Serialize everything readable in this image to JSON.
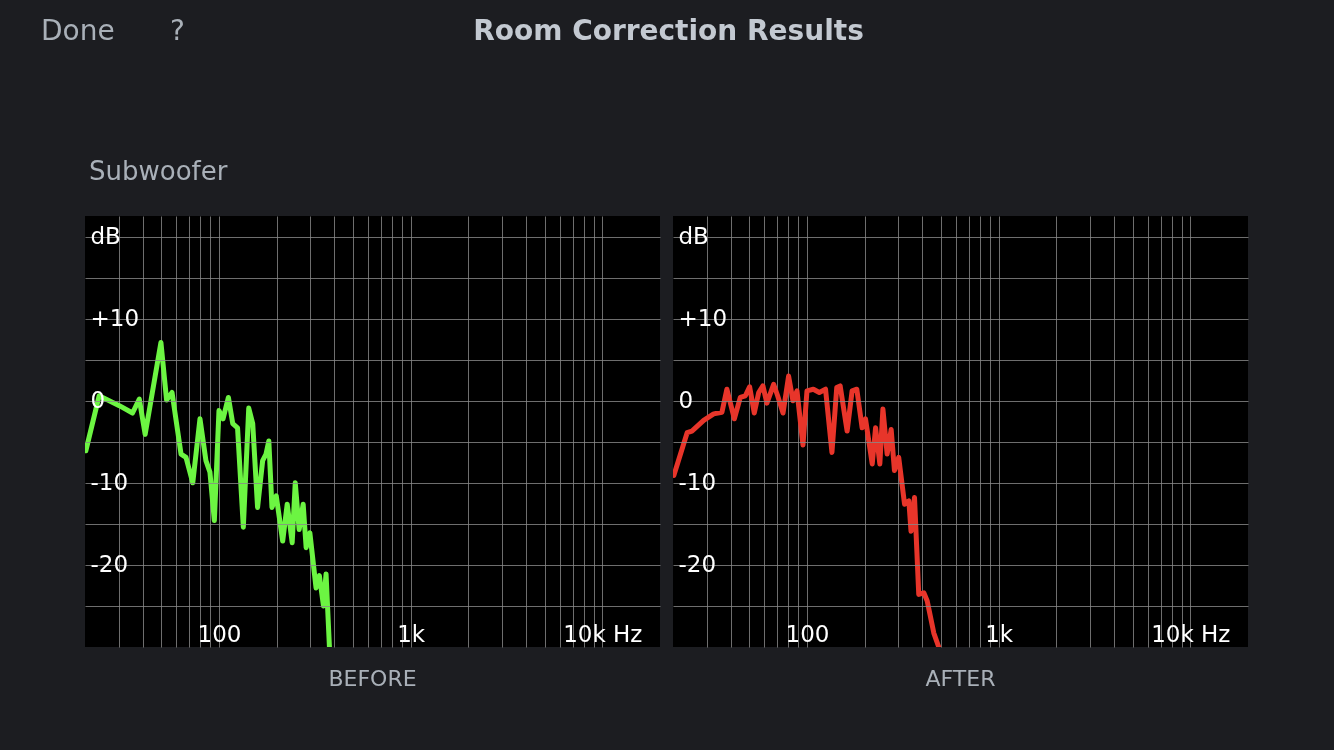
{
  "chart_data": [
    {
      "type": "other",
      "title": "Room Correction Results",
      "subtitle": "Subwoofer",
      "annotations": [
        "Done",
        "?"
      ]
    },
    {
      "type": "line",
      "title": "BEFORE",
      "xlim": [
        20,
        20000
      ],
      "ylim": [
        -30,
        22.5
      ],
      "log": "x",
      "grid": true,
      "xticks": [
        {
          "value": 30,
          "label": null
        },
        {
          "value": 40,
          "label": null
        },
        {
          "value": 50,
          "label": null
        },
        {
          "value": 60,
          "label": null
        },
        {
          "value": 70,
          "label": null
        },
        {
          "value": 80,
          "label": null
        },
        {
          "value": 90,
          "label": null
        },
        100,
        {
          "value": 200,
          "label": null
        },
        {
          "value": 300,
          "label": null
        },
        {
          "value": 400,
          "label": null
        },
        {
          "value": 500,
          "label": null
        },
        {
          "value": 600,
          "label": null
        },
        {
          "value": 700,
          "label": null
        },
        {
          "value": 800,
          "label": null
        },
        {
          "value": 900,
          "label": null
        },
        {
          "value": 1000,
          "label": "1k"
        },
        {
          "value": 2000,
          "label": null
        },
        {
          "value": 3000,
          "label": null
        },
        {
          "value": 4000,
          "label": null
        },
        {
          "value": 5000,
          "label": null
        },
        {
          "value": 6000,
          "label": null
        },
        {
          "value": 7000,
          "label": null
        },
        {
          "value": 8000,
          "label": null
        },
        {
          "value": 9000,
          "label": null
        },
        {
          "value": 10000,
          "label": "10k Hz"
        }
      ],
      "yticks": [
        {
          "value": -25,
          "label": null
        },
        -20,
        {
          "value": -15,
          "label": null
        },
        -10,
        {
          "value": -5,
          "label": null
        },
        0,
        {
          "value": 5,
          "label": null
        },
        {
          "value": 10,
          "label": "+10"
        },
        {
          "value": 15,
          "label": null
        },
        {
          "value": 20,
          "label": "dB"
        }
      ],
      "series": [
        {
          "color": "#6cf542",
          "x": [
            20.2,
            23.7,
            30.2,
            35.4,
            38.4,
            41.2,
            49.8,
            53.3,
            56.9,
            63.4,
            67.3,
            73,
            79.6,
            85.5,
            89.7,
            94.6,
            100,
            105,
            112,
            118,
            125,
            134,
            143,
            150,
            159,
            169,
            176,
            182,
            189,
            199,
            215,
            227,
            241,
            250,
            262,
            275,
            285,
            298,
            321,
            334,
            351,
            362,
            377
          ],
          "values": [
            -6.1,
            0.6,
            -0.6,
            -1.5,
            0.2,
            -4.1,
            7.1,
            0.1,
            1.0,
            -6.5,
            -6.9,
            -10.0,
            -2.2,
            -7.3,
            -8.7,
            -14.6,
            -1.2,
            -2.2,
            0.4,
            -2.8,
            -3.3,
            -15.4,
            -0.9,
            -2.8,
            -13.0,
            -7.3,
            -6.5,
            -4.9,
            -13.0,
            -11.6,
            -17.1,
            -12.6,
            -17.3,
            -10.0,
            -15.7,
            -12.6,
            -17.9,
            -16.1,
            -22.8,
            -21.3,
            -25.0,
            -21.1,
            -30
          ]
        }
      ]
    },
    {
      "type": "line",
      "title": "AFTER",
      "xlim": [
        20,
        20000
      ],
      "ylim": [
        -30,
        22.5
      ],
      "log": "x",
      "grid": true,
      "xticks": [
        {
          "value": 30,
          "label": null
        },
        {
          "value": 40,
          "label": null
        },
        {
          "value": 50,
          "label": null
        },
        {
          "value": 60,
          "label": null
        },
        {
          "value": 70,
          "label": null
        },
        {
          "value": 80,
          "label": null
        },
        {
          "value": 90,
          "label": null
        },
        100,
        {
          "value": 200,
          "label": null
        },
        {
          "value": 300,
          "label": null
        },
        {
          "value": 400,
          "label": null
        },
        {
          "value": 500,
          "label": null
        },
        {
          "value": 600,
          "label": null
        },
        {
          "value": 700,
          "label": null
        },
        {
          "value": 800,
          "label": null
        },
        {
          "value": 900,
          "label": null
        },
        {
          "value": 1000,
          "label": "1k"
        },
        {
          "value": 2000,
          "label": null
        },
        {
          "value": 3000,
          "label": null
        },
        {
          "value": 4000,
          "label": null
        },
        {
          "value": 5000,
          "label": null
        },
        {
          "value": 6000,
          "label": null
        },
        {
          "value": 7000,
          "label": null
        },
        {
          "value": 8000,
          "label": null
        },
        {
          "value": 9000,
          "label": null
        },
        {
          "value": 10000,
          "label": "10k Hz"
        }
      ],
      "yticks": [
        {
          "value": -25,
          "label": null
        },
        -20,
        {
          "value": -15,
          "label": null
        },
        -10,
        {
          "value": -5,
          "label": null
        },
        0,
        {
          "value": 5,
          "label": null
        },
        {
          "value": 10,
          "label": "+10"
        },
        {
          "value": 15,
          "label": null
        },
        {
          "value": 20,
          "label": "dB"
        }
      ],
      "series": [
        {
          "color": "#e8352a",
          "x": [
            20.2,
            23.7,
            25.1,
            28.9,
            32.6,
            36,
            38.2,
            41.8,
            44.9,
            47.7,
            50.2,
            53.1,
            56,
            58.9,
            61.8,
            67,
            70.3,
            75,
            80.2,
            84.5,
            88.7,
            95.3,
            100,
            108,
            116,
            125,
            135,
            143,
            149,
            162,
            172,
            182,
            194,
            202,
            219,
            228,
            240,
            249,
            262,
            275,
            286,
            301,
            323,
            340,
            349,
            364,
            383,
            407,
            424,
            459,
            487
          ],
          "values": [
            -9.1,
            -3.9,
            -3.7,
            -2.4,
            -1.6,
            -1.4,
            1.4,
            -2.2,
            0.4,
            0.6,
            1.7,
            -1.5,
            1.0,
            1.8,
            -0.3,
            2.0,
            0.6,
            -1.5,
            3.0,
            0,
            1.2,
            -5.4,
            1.2,
            1.4,
            1.0,
            1.4,
            -6.3,
            1.6,
            1.8,
            -3.7,
            1.2,
            1.4,
            -3.3,
            -2.2,
            -7.7,
            -3.3,
            -7.7,
            -1.0,
            -6.5,
            -3.5,
            -8.5,
            -6.9,
            -12.6,
            -12.2,
            -15.9,
            -11.8,
            -23.6,
            -23.4,
            -24.4,
            -28.3,
            -30
          ]
        }
      ]
    }
  ]
}
